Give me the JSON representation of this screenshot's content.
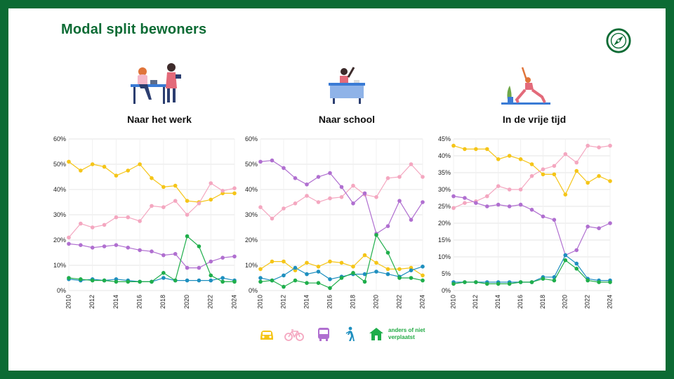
{
  "title": "Modal split bewoners",
  "colors": {
    "brand": "#0c6b34",
    "auto": "#f5c518",
    "fiets": "#f4a7c0",
    "ov": "#b06fd0",
    "lopen": "#1e8fbf",
    "anders": "#1fae4b"
  },
  "legend": {
    "items": [
      {
        "icon": "car-icon",
        "color": "#f5c518"
      },
      {
        "icon": "bicycle-icon",
        "color": "#f4a7c0"
      },
      {
        "icon": "bus-icon",
        "color": "#b06fd0"
      },
      {
        "icon": "walking-icon",
        "color": "#1e8fbf"
      },
      {
        "icon": "house-icon",
        "color": "#1fae4b"
      }
    ],
    "anders_label": "anders of niet verplaatst"
  },
  "chart_data": [
    {
      "type": "line",
      "title": "Naar het werk",
      "x": [
        2010,
        2011,
        2012,
        2013,
        2014,
        2015,
        2016,
        2017,
        2018,
        2019,
        2020,
        2021,
        2022,
        2023,
        2024
      ],
      "x_ticks": [
        "2010",
        "2012",
        "2014",
        "2016",
        "2018",
        "2020",
        "2022",
        "2024"
      ],
      "ylim": [
        0,
        60
      ],
      "y_ticks": [
        "0%",
        "10%",
        "20%",
        "30%",
        "40%",
        "50%",
        "60%"
      ],
      "y_tick_values": [
        0,
        10,
        20,
        30,
        40,
        50,
        60
      ],
      "grid": true,
      "series": [
        {
          "key": "auto",
          "color": "#f5c518",
          "values": [
            51,
            47.5,
            50,
            49,
            45.5,
            47.5,
            50,
            44.5,
            41,
            41.5,
            35.5,
            35,
            36,
            38.5,
            38.5
          ]
        },
        {
          "key": "fiets",
          "color": "#f4a7c0",
          "values": [
            21,
            26.5,
            25,
            26,
            29,
            29,
            27.5,
            33.5,
            33,
            35.5,
            30,
            34.5,
            42.5,
            39.5,
            40.5
          ]
        },
        {
          "key": "ov",
          "color": "#b06fd0",
          "values": [
            18.5,
            18,
            17,
            17.5,
            18,
            17,
            16,
            15.5,
            14,
            14.5,
            9,
            9,
            11.5,
            13,
            13.5
          ]
        },
        {
          "key": "lopen",
          "color": "#1e8fbf",
          "values": [
            4.5,
            4,
            4.5,
            4,
            4.5,
            4,
            3.5,
            3.5,
            5,
            4,
            4,
            4,
            4,
            5,
            4
          ]
        },
        {
          "key": "anders",
          "color": "#1fae4b",
          "values": [
            5,
            4.5,
            4,
            4,
            3.5,
            3.5,
            3.5,
            3.5,
            7,
            4,
            21.5,
            17.5,
            6,
            3.5,
            3.5
          ]
        }
      ]
    },
    {
      "type": "line",
      "title": "Naar school",
      "x": [
        2010,
        2011,
        2012,
        2013,
        2014,
        2015,
        2016,
        2017,
        2018,
        2019,
        2020,
        2021,
        2022,
        2023,
        2024
      ],
      "x_ticks": [
        "2010",
        "2012",
        "2014",
        "2016",
        "2018",
        "2020",
        "2022",
        "2024"
      ],
      "ylim": [
        0,
        60
      ],
      "y_ticks": [
        "0%",
        "10%",
        "20%",
        "30%",
        "40%",
        "50%",
        "60%"
      ],
      "y_tick_values": [
        0,
        10,
        20,
        30,
        40,
        50,
        60
      ],
      "grid": true,
      "series": [
        {
          "key": "auto",
          "color": "#f5c518",
          "values": [
            8.5,
            11.5,
            11.5,
            8,
            11,
            9.5,
            11.5,
            11,
            9.5,
            14,
            11,
            8.5,
            8.5,
            9,
            6
          ]
        },
        {
          "key": "fiets",
          "color": "#f4a7c0",
          "values": [
            33,
            28.5,
            32.5,
            34.5,
            37.5,
            35,
            36.5,
            37,
            41.5,
            38,
            37,
            44.5,
            45,
            50,
            45
          ]
        },
        {
          "key": "ov",
          "color": "#b06fd0",
          "values": [
            51,
            51.5,
            48.5,
            44.5,
            42,
            45,
            46.5,
            41,
            34.5,
            38.5,
            22.5,
            25.5,
            35.5,
            28,
            35
          ]
        },
        {
          "key": "lopen",
          "color": "#1e8fbf",
          "values": [
            5,
            4,
            6,
            9,
            6.5,
            7.5,
            4.5,
            5.5,
            6.5,
            6.5,
            7.5,
            6.5,
            5.5,
            8,
            9.5
          ]
        },
        {
          "key": "anders",
          "color": "#1fae4b",
          "values": [
            3.5,
            4,
            1.5,
            4,
            3,
            3,
            1,
            5,
            7,
            3.5,
            22,
            15,
            5,
            5,
            4
          ]
        }
      ]
    },
    {
      "type": "line",
      "title": "In de vrije tijd",
      "x": [
        2010,
        2011,
        2012,
        2013,
        2014,
        2015,
        2016,
        2017,
        2018,
        2019,
        2020,
        2021,
        2022,
        2023,
        2024
      ],
      "x_ticks": [
        "2010",
        "2012",
        "2014",
        "2016",
        "2018",
        "2020",
        "2022",
        "2024"
      ],
      "ylim": [
        0,
        45
      ],
      "y_ticks": [
        "0%",
        "5%",
        "10%",
        "15%",
        "20%",
        "25%",
        "30%",
        "35%",
        "40%",
        "45%"
      ],
      "y_tick_values": [
        0,
        5,
        10,
        15,
        20,
        25,
        30,
        35,
        40,
        45
      ],
      "grid": true,
      "series": [
        {
          "key": "auto",
          "color": "#f5c518",
          "values": [
            43,
            42,
            42,
            42,
            39,
            40,
            39,
            37.5,
            34.5,
            34.5,
            28.5,
            35.5,
            32,
            34,
            32.5
          ]
        },
        {
          "key": "fiets",
          "color": "#f4a7c0",
          "values": [
            24.5,
            26,
            26.5,
            28,
            31,
            30,
            30,
            34,
            36,
            37,
            40.5,
            38,
            43,
            42.5,
            43
          ]
        },
        {
          "key": "ov",
          "color": "#b06fd0",
          "values": [
            28,
            27.5,
            26,
            25,
            25.5,
            25,
            25.5,
            24,
            22,
            21,
            10.5,
            12,
            19,
            18.5,
            20
          ]
        },
        {
          "key": "lopen",
          "color": "#1e8fbf",
          "values": [
            2.5,
            2.5,
            2.5,
            2.5,
            2.5,
            2.5,
            2.5,
            2.5,
            4,
            4,
            10.5,
            8,
            3.5,
            3,
            3
          ]
        },
        {
          "key": "anders",
          "color": "#1fae4b",
          "values": [
            2,
            2.5,
            2.5,
            2,
            2,
            2,
            2.5,
            2.5,
            3.5,
            3,
            9,
            6.5,
            3,
            2.5,
            2.5
          ]
        }
      ]
    }
  ]
}
